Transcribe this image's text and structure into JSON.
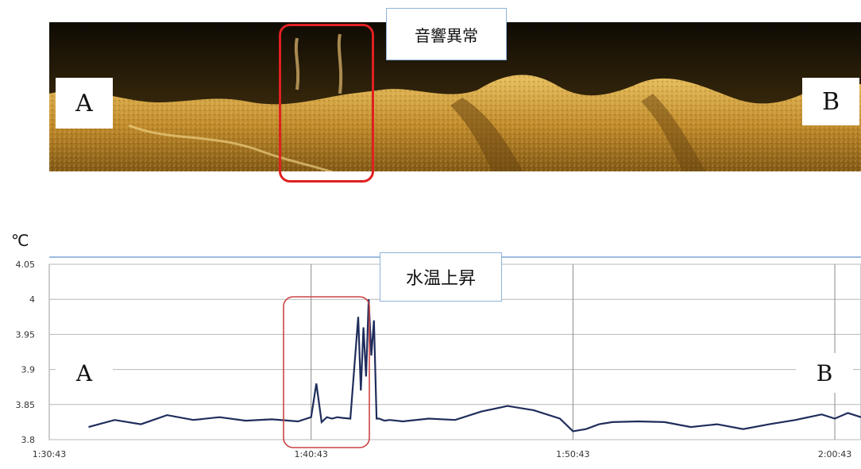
{
  "sonar": {
    "callout": "音響異常",
    "endpoint_a": "A",
    "endpoint_b": "B"
  },
  "chart_data": {
    "type": "line",
    "title": "",
    "ylabel": "℃",
    "xlabel": "",
    "callout": "水温上昇",
    "endpoint_a": "A",
    "endpoint_b": "B",
    "ylim": [
      3.8,
      4.05
    ],
    "yticks": [
      "4.05",
      "4",
      "3.95",
      "3.9",
      "3.85",
      "3.8"
    ],
    "xticks": [
      "1:30:43",
      "1:40:43",
      "1:50:43",
      "2:00:43"
    ],
    "xlim_minutes": [
      0,
      31
    ],
    "grid": true,
    "colors": {
      "line": "#1f2d5c",
      "highlight": "#cc4444",
      "sonar_highlight": "#e02020"
    },
    "series": [
      {
        "x": [
          1.5,
          2.5,
          3.5,
          4.5,
          5.5,
          6.5,
          7.5,
          8.5,
          9.5,
          10.0,
          10.2,
          10.4,
          10.6,
          10.8,
          11.0,
          11.2,
          11.5,
          11.8,
          11.9,
          12.0,
          12.1,
          12.2,
          12.3,
          12.4,
          12.5,
          12.6,
          12.8,
          13.0,
          13.5,
          14.5,
          15.5,
          16.5,
          17.5,
          18.5,
          19.5,
          20.0,
          20.5,
          21.0,
          21.5,
          22.5,
          23.5,
          24.5,
          25.5,
          26.5,
          27.5,
          28.5,
          29.5,
          30.0,
          30.5,
          31.0
        ],
        "y": [
          3.818,
          3.828,
          3.822,
          3.835,
          3.828,
          3.832,
          3.827,
          3.829,
          3.826,
          3.832,
          3.88,
          3.825,
          3.832,
          3.83,
          3.832,
          3.831,
          3.83,
          3.975,
          3.87,
          3.96,
          3.89,
          4.0,
          3.92,
          3.97,
          3.83,
          3.83,
          3.827,
          3.828,
          3.826,
          3.83,
          3.828,
          3.84,
          3.848,
          3.842,
          3.83,
          3.812,
          3.815,
          3.822,
          3.825,
          3.826,
          3.825,
          3.818,
          3.822,
          3.815,
          3.822,
          3.828,
          3.836,
          3.83,
          3.838,
          3.832
        ]
      }
    ]
  }
}
